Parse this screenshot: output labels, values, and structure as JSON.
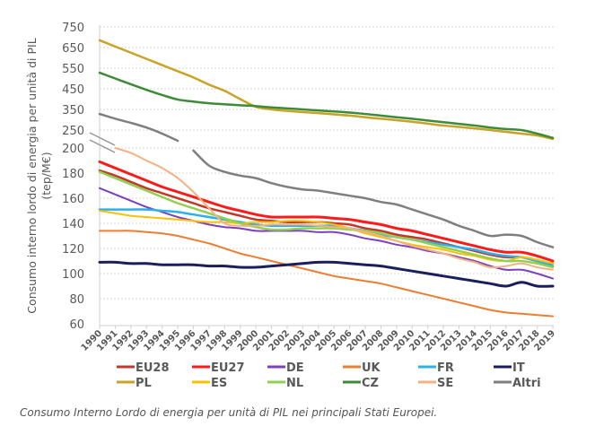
{
  "caption": "Consumo Interno Lordo di energia per unità di PIL nei principali Stati Europei.",
  "chart_data": {
    "type": "line",
    "title": "",
    "xlabel": "",
    "ylabel": "Consumo interno lordo di energia per unità di PIL (tep/M€)",
    "ylabel_lines": [
      "Consumo interno lordo di energia per unità di PIL",
      "(tep/M€)"
    ],
    "y_axis_break": true,
    "ylim": [
      60,
      750
    ],
    "y_ticks_lower": [
      60,
      80,
      100,
      120,
      140,
      160,
      180,
      200
    ],
    "y_ticks_upper": [
      250,
      350,
      450,
      550,
      650,
      750
    ],
    "grid": true,
    "legend_position": "bottom",
    "x": [
      "1990",
      "1991",
      "1992",
      "1993",
      "1994",
      "1995",
      "1996",
      "1997",
      "1998",
      "1999",
      "2000",
      "2001",
      "2002",
      "2003",
      "2004",
      "2005",
      "2006",
      "2007",
      "2008",
      "2009",
      "2010",
      "2011",
      "2012",
      "2013",
      "2014",
      "2015",
      "2016",
      "2017",
      "2018",
      "2019"
    ],
    "series": [
      {
        "name": "EU28",
        "color": "#C0392B",
        "width": 2.5,
        "values": [
          182,
          178,
          173,
          168,
          164,
          160,
          156,
          152,
          149,
          146,
          143,
          142,
          141,
          141,
          141,
          140,
          139,
          136,
          134,
          131,
          129,
          127,
          124,
          121,
          118,
          115,
          113,
          113,
          110,
          108
        ]
      },
      {
        "name": "EU27",
        "color": "#FF1A1A",
        "width": 3,
        "values": [
          189,
          184,
          179,
          174,
          169,
          165,
          161,
          157,
          153,
          150,
          147,
          145,
          145,
          145,
          145,
          144,
          143,
          141,
          139,
          136,
          134,
          131,
          128,
          125,
          122,
          119,
          117,
          117,
          114,
          110
        ]
      },
      {
        "name": "DE",
        "color": "#7B3FBF",
        "width": 2,
        "values": [
          168,
          163,
          158,
          153,
          149,
          145,
          142,
          139,
          137,
          136,
          134,
          134,
          134,
          134,
          133,
          133,
          131,
          128,
          126,
          123,
          121,
          118,
          116,
          113,
          110,
          106,
          103,
          103,
          100,
          96
        ]
      },
      {
        "name": "UK",
        "color": "#ED7D31",
        "width": 2,
        "values": [
          134,
          134,
          134,
          133,
          132,
          130,
          127,
          124,
          120,
          116,
          113,
          110,
          107,
          104,
          101,
          98,
          96,
          94,
          92,
          89,
          86,
          83,
          80,
          77,
          74,
          71,
          69,
          68,
          67,
          66
        ]
      },
      {
        "name": "FR",
        "color": "#2AB0EA",
        "width": 2.5,
        "values": [
          151,
          151,
          151,
          151,
          150,
          149,
          147,
          145,
          143,
          141,
          139,
          138,
          138,
          138,
          138,
          138,
          136,
          134,
          131,
          129,
          127,
          125,
          123,
          121,
          119,
          116,
          114,
          113,
          110,
          106
        ]
      },
      {
        "name": "IT",
        "color": "#1A1F5C",
        "width": 3,
        "values": [
          109,
          109,
          108,
          108,
          107,
          107,
          107,
          106,
          106,
          105,
          105,
          106,
          107,
          108,
          109,
          109,
          108,
          107,
          106,
          104,
          102,
          100,
          98,
          96,
          94,
          92,
          90,
          93,
          90,
          90
        ]
      },
      {
        "name": "PL",
        "color": "#C9A227",
        "width": 2.5,
        "values": [
          685,
          655,
          625,
          595,
          565,
          535,
          505,
          470,
          440,
          400,
          363,
          350,
          343,
          337,
          332,
          326,
          320,
          312,
          305,
          298,
          290,
          281,
          272,
          265,
          258,
          250,
          245,
          240,
          235,
          225
        ]
      },
      {
        "name": "ES",
        "color": "#FFC000",
        "width": 2,
        "values": [
          150,
          148,
          146,
          145,
          144,
          143,
          142,
          141,
          141,
          140,
          141,
          141,
          142,
          142,
          141,
          139,
          136,
          132,
          129,
          126,
          123,
          121,
          119,
          116,
          114,
          111,
          110,
          113,
          111,
          108
        ]
      },
      {
        "name": "NL",
        "color": "#92D050",
        "width": 2.5,
        "values": [
          181,
          176,
          171,
          166,
          161,
          156,
          152,
          148,
          144,
          140,
          137,
          135,
          135,
          136,
          136,
          136,
          135,
          134,
          132,
          129,
          127,
          124,
          121,
          118,
          115,
          112,
          110,
          110,
          108,
          105
        ]
      },
      {
        "name": "CZ",
        "color": "#3D8B37",
        "width": 2.5,
        "values": [
          528,
          500,
          472,
          445,
          420,
          398,
          388,
          380,
          375,
          370,
          366,
          360,
          355,
          350,
          345,
          340,
          335,
          328,
          320,
          312,
          305,
          296,
          288,
          280,
          272,
          262,
          255,
          250,
          240,
          228
        ]
      },
      {
        "name": "SE",
        "color": "#F4B183",
        "width": 2,
        "values": [
          null,
          200,
          196,
          190,
          184,
          176,
          165,
          152,
          140,
          138,
          138,
          139,
          139,
          139,
          138,
          137,
          136,
          133,
          130,
          126,
          122,
          119,
          116,
          112,
          109,
          105,
          106,
          108,
          105,
          103
        ]
      },
      {
        "name": "Altri",
        "color": "#7F7F7F",
        "width": 2.5,
        "values": [
          328,
          305,
          285,
          262,
          240,
          220,
          198,
          186,
          181,
          178,
          176,
          172,
          169,
          167,
          166,
          164,
          162,
          160,
          157,
          155,
          151,
          147,
          143,
          138,
          134,
          130,
          131,
          130,
          125,
          121
        ]
      }
    ]
  }
}
